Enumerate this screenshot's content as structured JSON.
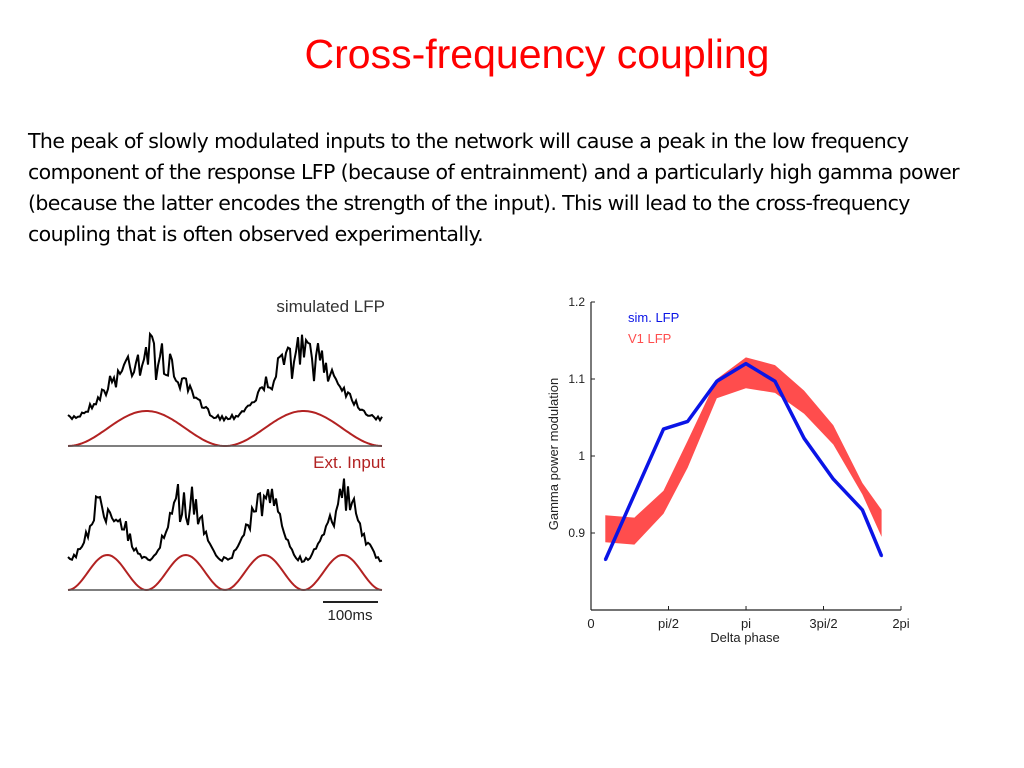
{
  "slide": {
    "title": "Cross-frequency coupling",
    "body": "The peak of slowly modulated inputs to the network will cause a peak in the low frequency component of the response LFP (because of entrainment) and a particularly high gamma power (because the latter encodes the strength of the input). This will lead to the cross-frequency coupling that is often observed experimentally."
  },
  "lfp_panel": {
    "top_label": "simulated LFP",
    "middle_label": "Ext. Input",
    "scalebar_label": "100ms",
    "lfp_color": "#000000",
    "input_color": "#b22222"
  },
  "chart_data": {
    "type": "line",
    "title": "",
    "xlabel": "Delta phase",
    "ylabel": "Gamma power modulation",
    "xlim": [
      0,
      6.283
    ],
    "ylim": [
      0.8,
      1.2
    ],
    "xticks": [
      {
        "value": 0,
        "label": "0"
      },
      {
        "value": 1.571,
        "label": "pi/2"
      },
      {
        "value": 3.142,
        "label": "pi"
      },
      {
        "value": 4.712,
        "label": "3pi/2"
      },
      {
        "value": 6.283,
        "label": "2pi"
      }
    ],
    "yticks": [
      {
        "value": 0.9,
        "label": "0.9"
      },
      {
        "value": 1.0,
        "label": "1"
      },
      {
        "value": 1.1,
        "label": "1.1"
      },
      {
        "value": 1.2,
        "label": "1.2"
      }
    ],
    "legend_position": "top-left",
    "grid": false,
    "series": [
      {
        "name": "sim. LFP",
        "color": "#0a14e6",
        "x": [
          0.29,
          0.88,
          1.47,
          1.96,
          2.55,
          3.14,
          3.73,
          4.32,
          4.91,
          5.5,
          5.89
        ],
        "y": [
          0.865,
          0.95,
          1.035,
          1.045,
          1.097,
          1.12,
          1.097,
          1.023,
          0.97,
          0.93,
          0.87
        ]
      },
      {
        "name": "V1 LFP",
        "color": "#ff4d4d",
        "type": "band",
        "x": [
          0.29,
          0.88,
          1.47,
          1.96,
          2.55,
          3.14,
          3.73,
          4.32,
          4.91,
          5.5,
          5.89
        ],
        "lower": [
          0.888,
          0.885,
          0.925,
          0.985,
          1.075,
          1.088,
          1.082,
          1.055,
          1.015,
          0.95,
          0.895
        ],
        "upper": [
          0.923,
          0.92,
          0.955,
          1.02,
          1.1,
          1.128,
          1.118,
          1.085,
          1.04,
          0.965,
          0.93
        ]
      }
    ]
  }
}
